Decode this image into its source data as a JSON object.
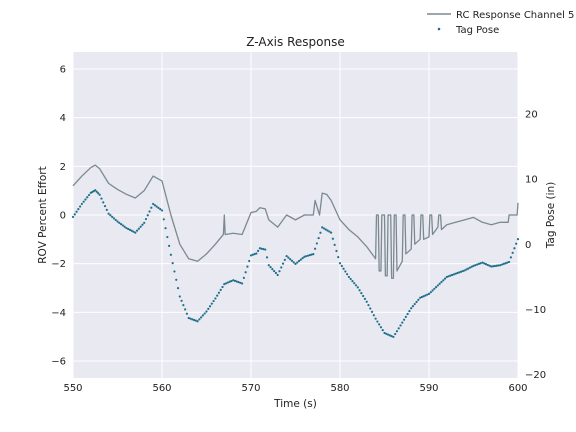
{
  "chart_data": {
    "type": "line",
    "title": "Z-Axis Response",
    "xlabel": "Time (s)",
    "ylabel": "ROV Percent Effort",
    "y2label": "Tag Pose (in)",
    "xlim": [
      550,
      600
    ],
    "ylim": [
      -6.7,
      6.7
    ],
    "y2lim": [
      -20.5,
      29.5
    ],
    "xticks": [
      "550",
      "560",
      "570",
      "580",
      "590",
      "600"
    ],
    "yticks": [
      "−6",
      "−4",
      "−2",
      "0",
      "2",
      "4",
      "6"
    ],
    "y2ticks": [
      "−20",
      "−10",
      "0",
      "10",
      "20"
    ],
    "grid": true,
    "legend_position": "top-right",
    "series": [
      {
        "name": "RC Response Channel 5",
        "kind": "line",
        "axis": "left",
        "color": "#7a8a90",
        "x": [
          550,
          551,
          552,
          552.5,
          553,
          554,
          555,
          556,
          557,
          558,
          559,
          560,
          561,
          562,
          563,
          564,
          565,
          566,
          566.9,
          567,
          567.1,
          568,
          569,
          570,
          570.6,
          571,
          571.6,
          572,
          573,
          574,
          575,
          576,
          576.5,
          577,
          577.2,
          577.7,
          578,
          578.5,
          579,
          580,
          581,
          582,
          583,
          584,
          584.1,
          584.3,
          584.4,
          584.6,
          584.7,
          585,
          585.1,
          585.3,
          585.4,
          585.7,
          585.8,
          586,
          586.1,
          586.3,
          586.4,
          587,
          587.1,
          587.3,
          587.4,
          588,
          588.1,
          588.3,
          588.4,
          589,
          589.1,
          589.3,
          589.4,
          590,
          590.1,
          590.3,
          590.4,
          591,
          591.1,
          591.3,
          591.4,
          592,
          593,
          594,
          595,
          596,
          597,
          598,
          598.9,
          599,
          599.9,
          600
        ],
        "y": [
          1.2,
          1.6,
          1.95,
          2.05,
          1.9,
          1.3,
          1.05,
          0.85,
          0.7,
          1.0,
          1.6,
          1.4,
          0.0,
          -1.2,
          -1.8,
          -1.9,
          -1.6,
          -1.2,
          -0.8,
          0.0,
          -0.8,
          -0.75,
          -0.8,
          0.1,
          0.15,
          0.3,
          0.25,
          -0.2,
          -0.5,
          0.0,
          -0.2,
          0.0,
          0.0,
          0.0,
          0.6,
          0.0,
          0.9,
          0.85,
          0.6,
          -0.2,
          -0.6,
          -0.9,
          -1.3,
          -1.8,
          0.0,
          0.0,
          -2.3,
          -2.3,
          0.0,
          0.0,
          -2.5,
          -2.5,
          0.0,
          0.0,
          -2.6,
          -2.6,
          0.0,
          0.0,
          -2.3,
          -1.9,
          0.0,
          0.0,
          -1.6,
          -1.4,
          0.0,
          0.0,
          -1.2,
          -1.0,
          0.0,
          0.0,
          -1.0,
          -0.9,
          0.0,
          0.0,
          -0.8,
          -0.5,
          0.0,
          0.0,
          -0.6,
          -0.4,
          -0.3,
          -0.2,
          -0.1,
          -0.3,
          -0.4,
          -0.3,
          -0.3,
          0.0,
          0.0,
          0.5
        ]
      },
      {
        "name": "Tag Pose",
        "kind": "scatter",
        "axis": "right",
        "color": "#1f6f8b",
        "x": [
          550,
          551,
          552,
          552.5,
          553,
          554,
          555,
          556,
          557,
          558,
          559,
          560,
          561,
          562,
          563,
          564,
          565,
          566,
          567,
          568,
          569,
          570,
          570.6,
          571,
          571.6,
          572,
          573,
          574,
          575,
          576,
          577,
          578,
          579,
          580,
          581,
          582,
          583,
          584,
          585,
          586,
          587,
          588,
          589,
          590,
          591,
          592,
          593,
          594,
          595,
          596,
          597,
          598,
          599,
          600
        ],
        "y": [
          4.2,
          6.2,
          7.9,
          8.3,
          7.6,
          4.7,
          3.5,
          2.5,
          1.8,
          3.3,
          6.2,
          5.2,
          -1.6,
          -8.0,
          -11.3,
          -11.8,
          -10.3,
          -8.3,
          -6.1,
          -5.5,
          -6.0,
          -1.7,
          -1.4,
          -0.6,
          -0.8,
          -3.2,
          -4.7,
          -1.8,
          -3.0,
          -1.9,
          -1.5,
          2.6,
          1.8,
          -2.9,
          -5.0,
          -6.6,
          -8.8,
          -11.4,
          -13.6,
          -14.2,
          -12.0,
          -9.8,
          -8.2,
          -7.6,
          -6.3,
          -5.0,
          -4.5,
          -4.0,
          -3.3,
          -2.8,
          -3.4,
          -3.2,
          -2.7,
          0.8
        ]
      }
    ]
  }
}
